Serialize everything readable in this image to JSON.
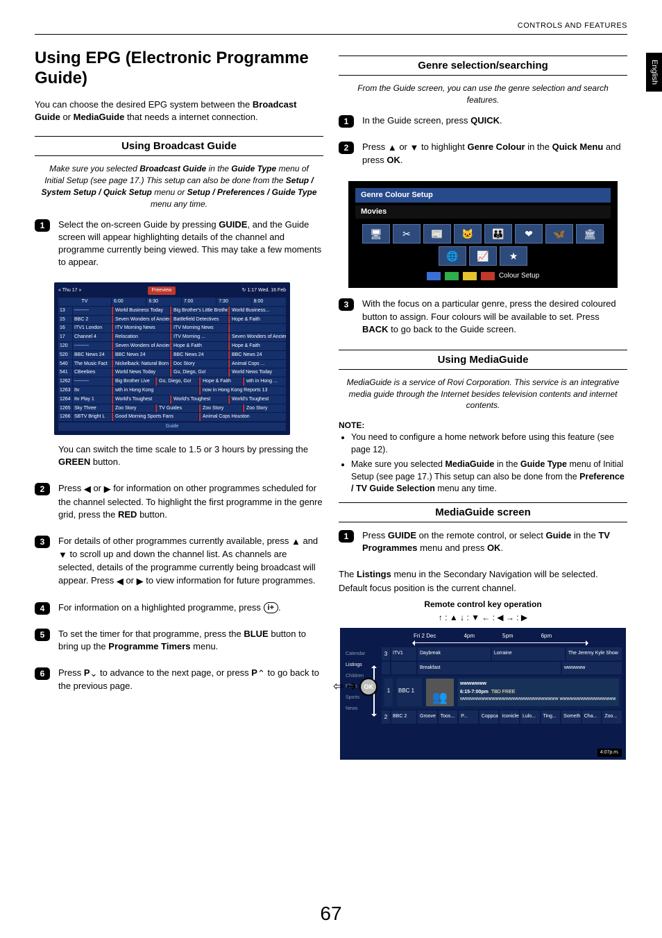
{
  "header": {
    "section": "CONTROLS AND FEATURES"
  },
  "sideTab": "English",
  "left": {
    "h1": "Using EPG (Electronic Programme Guide)",
    "intro_pre": "You can  choose the desired EPG system  between the ",
    "intro_b1": "Broadcast Guide",
    "intro_mid": " or ",
    "intro_b2": "MediaGuide",
    "intro_post": " that needs a internet connection.",
    "sect1": "Using  Broadcast Guide",
    "note1_a": "Make sure you selected ",
    "note1_b1": "Broadcast Guide",
    "note1_b": " in the ",
    "note1_b2": "Guide Type",
    "note1_c": " menu of Initial Setup (see page 17.) This setup can also be done from the ",
    "note1_b3": "Setup / System Setup / Quick Setup",
    "note1_d": " menu or ",
    "note1_b4": "Setup / Preferences / Guide Type",
    "note1_e": " menu any time.",
    "step1a": "Select the on-screen Guide by pressing ",
    "step1b": "GUIDE",
    "step1c": ", and the Guide screen will appear highlighting details of the channel and programme currently being viewed. This may take a few moments to appear.",
    "epg": {
      "left": "« Thu 17 »",
      "tag": "Freeview",
      "right": "↻ 1:17 Wed. 16 Feb",
      "timeHeader": [
        "TV",
        "6:00",
        "6:30",
        "7:00",
        "7:30",
        "8:00"
      ],
      "channels": [
        {
          "n": "13",
          "name": "---------",
          "progs": [
            "World Business Today",
            "Big Brother's Little Brother",
            "World Business..."
          ]
        },
        {
          "n": "15",
          "name": "BBC 2",
          "progs": [
            "Seven Wonders of Ancient Rome",
            "Battlefield Detectives",
            "Hope & Faith"
          ]
        },
        {
          "n": "16",
          "name": "ITV1 London",
          "progs": [
            "ITV Morning News",
            "ITV Morning News",
            ""
          ]
        },
        {
          "n": "17",
          "name": "Channel 4",
          "progs": [
            "Relocation",
            "ITV Morning ...",
            "Seven Wonders of Ancient Rome"
          ]
        },
        {
          "n": "120",
          "name": "---------",
          "progs": [
            "Seven Wonders of Ancient Rome",
            "Hope & Faith",
            "Hope & Faith"
          ]
        },
        {
          "n": "520",
          "name": "BBC News 24",
          "progs": [
            "BBC News 24",
            "BBC News 24",
            "BBC News 24"
          ]
        },
        {
          "n": "540",
          "name": "The Music Fact",
          "progs": [
            "Nickelback: Natural Born Dealers",
            "Doc Story",
            "Animal Cops ..."
          ]
        },
        {
          "n": "541",
          "name": "CBeebies",
          "progs": [
            "World News Today",
            "Go, Diego, Go!",
            "World News Today"
          ]
        },
        {
          "n": "1262",
          "name": "---------",
          "progs": [
            "Big Brother Live",
            "Go, Diego, Go!",
            "Hope & Faith",
            "wth in Hong ..."
          ]
        },
        {
          "n": "1263",
          "name": "Itv",
          "progs": [
            "wth in Hong Kong",
            "now in Hong Kong Reports 13"
          ]
        },
        {
          "n": "1264",
          "name": "Itv Play 1",
          "progs": [
            "World's Toughest",
            "World's Toughest",
            "World's Toughest"
          ]
        },
        {
          "n": "1265",
          "name": "Sky Three",
          "progs": [
            "Zoo Story",
            "TV Guides",
            "Zoo Story",
            "Zoo Story"
          ]
        },
        {
          "n": "1266",
          "name": "SBTV Bright L",
          "progs": [
            "Good Morning Sports Fans",
            "Animal Cops Houston"
          ]
        }
      ],
      "foot": "Guide"
    },
    "step1sub_a": "You can switch the time scale to 1.5 or 3 hours by pressing the ",
    "step1sub_b": "GREEN",
    "step1sub_c": " button.",
    "step2a": "Press ",
    "step2b": " or ",
    "step2c": " for information on other programmes scheduled for the channel selected. To highlight the first programme in the genre grid, press the ",
    "step2d": "RED",
    "step2e": " button.",
    "step3a": "For details of other programmes currently available, press ",
    "step3b": " and ",
    "step3c": " to scroll up and down the channel list. As channels are selected, details of the programme currently being broadcast will appear. Press ",
    "step3d": " or ",
    "step3e": " to view information for future programmes.",
    "step4a": "For information on a highlighted programme, press ",
    "step4b": ".",
    "step5a": "To set the timer for that programme, press the ",
    "step5b": "BLUE",
    "step5c": " button to bring up the ",
    "step5d": "Programme Timers",
    "step5e": " menu.",
    "step6a": "Press ",
    "step6b": "P",
    "step6c": " to advance to the next page, or press ",
    "step6d": "P",
    "step6e": " to go back to the previous page.",
    "iplus": "i+"
  },
  "right": {
    "sectA": "Genre selection/searching",
    "noteA": "From the Guide screen, you can use the genre selection and search features.",
    "stepA1a": "In the Guide screen, press ",
    "stepA1b": "QUICK",
    "stepA1c": ".",
    "stepA2a": "Press ",
    "stepA2b": " or ",
    "stepA2c": " to highlight ",
    "stepA2d": "Genre Colour",
    "stepA2e": " in the ",
    "stepA2f": "Quick Menu",
    "stepA2g": " and press ",
    "stepA2h": "OK",
    "stepA2i": ".",
    "genreBox": {
      "title": "Genre Colour Setup",
      "sub": "Movies",
      "icons": [
        "🖥",
        "✂",
        "📰",
        "🐱",
        "👪",
        "❤",
        "🦋",
        "🏛",
        "🌐",
        "📈",
        "★"
      ],
      "swatches": [
        "#3a6fd8",
        "#2fae4a",
        "#e6c22e",
        "#c0392b"
      ],
      "label": "Colour Setup"
    },
    "stepA3a": "With the focus on a particular genre, press the desired coloured button to assign. Four colours will be available to set. Press ",
    "stepA3b": "BACK",
    "stepA3c": " to go back to the Guide screen.",
    "sectB": "Using MediaGuide",
    "noteB": "MediaGuide is a service of Rovi Corporation. This service is an integrative media guide through the Internet besides television contents and internet contents.",
    "noteHead": "NOTE:",
    "noteList1": "You need to configure a home network before using this feature (see page 12).",
    "noteList2a": "Make sure you selected ",
    "noteList2b": "MediaGuide",
    "noteList2c": " in the ",
    "noteList2d": "Guide Type",
    "noteList2e": " menu of Initial Setup (see page 17.) This setup can also be done from the ",
    "noteList2f": "Preference / TV Guide Selection",
    "noteList2g": " menu any time.",
    "sectC": "MediaGuide screen",
    "stepC1a": "Press ",
    "stepC1b": "GUIDE",
    "stepC1c": " on the remote control, or select ",
    "stepC1d": "Guide",
    "stepC1e": " in the ",
    "stepC1f": "TV Programmes",
    "stepC1g": " menu and press ",
    "stepC1h": "OK",
    "stepC1i": ".",
    "belowC_a": "The ",
    "belowC_b": "Listings",
    "belowC_c": " menu in the Secondary Navigation will be selected.",
    "belowC2": "Default focus position is the current channel.",
    "remoteLabel": "Remote control key operation",
    "remoteMap": "↑ : ▲  ↓ : ▼  ← : ◀  → : ▶",
    "media": {
      "times": [
        "Fri 2 Dec",
        "4pm",
        "5pm",
        "6pm"
      ],
      "sidebar": [
        "Calendar",
        "Listings",
        "Children",
        "Films",
        "Sports",
        "News"
      ],
      "row1": {
        "n": "3",
        "ch": "ITV1",
        "slots": [
          "Daybreak",
          "Lorraine",
          "The Jeremy Kyle Show"
        ]
      },
      "row2": {
        "n": "",
        "ch": "",
        "slots": [
          "Breakfast",
          "wwwwww"
        ]
      },
      "focus": {
        "n": "1",
        "ch": "BBC 1",
        "title": "wwwwwww",
        "time": "6:15-7:00pm",
        "badge": "TBD  FREE",
        "desc": "wwwwwwwwwwwwwwwwwwwwwwwwwwww wwwwwwwwwwwwwwww"
      },
      "row3": {
        "n": "2",
        "ch": "BBC 2",
        "slots": [
          "Groove a...",
          "Toos...",
          "P...",
          "Coppcats",
          "Iconicles",
          "Lulo...",
          "Ting...",
          "Someth...",
          "Cha...",
          "Zoo..."
        ]
      },
      "clock": "4:07p.m.",
      "ok": "OK"
    }
  },
  "pageNum": "67"
}
